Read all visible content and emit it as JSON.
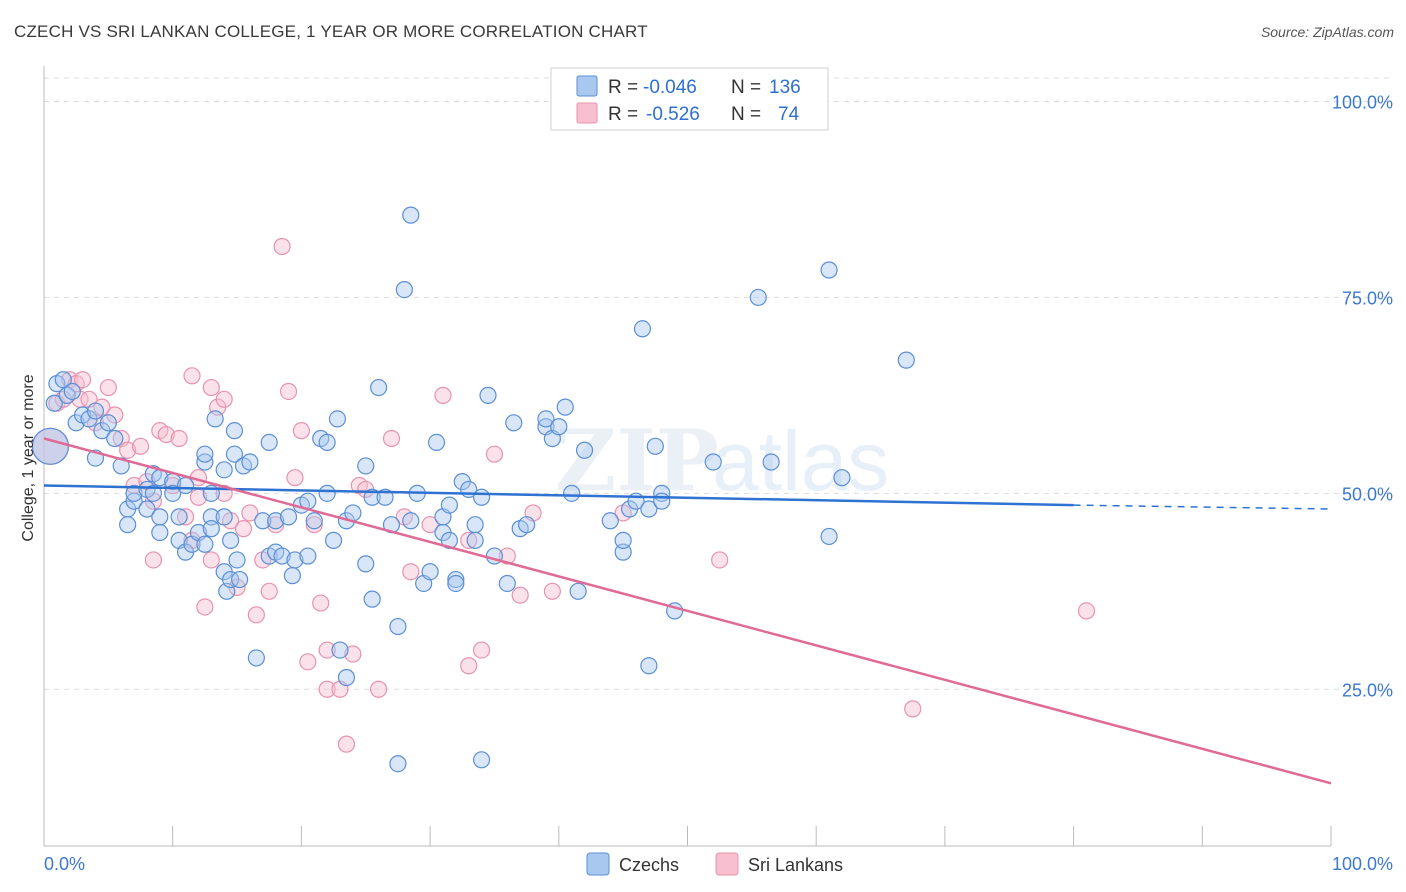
{
  "header": {
    "title": "CZECH VS SRI LANKAN COLLEGE, 1 YEAR OR MORE CORRELATION CHART",
    "source": "Source: ZipAtlas.com"
  },
  "legend": {
    "rows": [
      {
        "r_label": "R =",
        "r_value": "-0.046",
        "n_label": "N =",
        "n_value": "136"
      },
      {
        "r_label": "R =",
        "r_value": "-0.526",
        "n_label": "N =",
        "n_value": "74"
      }
    ]
  },
  "watermark": {
    "zip": "ZIP",
    "atlas": "atlas"
  },
  "colors": {
    "czech_fill": "#a9c8ef",
    "czech_stroke": "#5b8fd6",
    "czech_line": "#2e72d2",
    "srilanka_fill": "#f7bfd0",
    "srilanka_stroke": "#e893ae",
    "srilanka_line": "#e06a96",
    "tick_label": "#3b78cf",
    "grid": "#dddddd"
  },
  "chart_data": {
    "type": "scatter",
    "title": "CZECH VS SRI LANKAN COLLEGE, 1 YEAR OR MORE CORRELATION CHART",
    "xlabel": "",
    "ylabel": "College, 1 year or more",
    "xlim": [
      0,
      100
    ],
    "ylim": [
      5,
      103
    ],
    "x_tick_labels": [
      "0.0%",
      "100.0%"
    ],
    "y_tick_labels": [
      {
        "value": 25,
        "label": "25.0%"
      },
      {
        "value": 50,
        "label": "50.0%"
      },
      {
        "value": 75,
        "label": "75.0%"
      },
      {
        "value": 100,
        "label": "100.0%"
      }
    ],
    "grid": true,
    "legend_position": "top-center",
    "series": [
      {
        "name": "Czechs",
        "color": "#a9c8ef",
        "trend": {
          "x0": 0,
          "y0": 51.0,
          "x1": 80,
          "y1": 48.5,
          "dashed_to": 100,
          "dashed_y": 48.0
        },
        "points": [
          [
            0.5,
            56,
            1
          ],
          [
            0.8,
            61.5,
            0
          ],
          [
            1,
            64,
            0
          ],
          [
            1.5,
            64.5,
            0
          ],
          [
            1.8,
            62.5,
            0
          ],
          [
            2.2,
            63,
            0
          ],
          [
            2.5,
            59,
            0
          ],
          [
            3,
            60,
            0
          ],
          [
            3.5,
            59.5,
            0
          ],
          [
            4,
            60.5,
            0
          ],
          [
            4.5,
            58,
            0
          ],
          [
            5,
            59,
            0
          ],
          [
            5.5,
            57,
            0
          ],
          [
            4,
            54.5,
            0
          ],
          [
            6,
            53.5,
            0
          ],
          [
            6.5,
            48,
            0
          ],
          [
            6.5,
            46,
            0
          ],
          [
            7,
            49,
            0
          ],
          [
            7,
            50,
            0
          ],
          [
            8,
            48,
            0
          ],
          [
            8,
            50.5,
            0
          ],
          [
            8.5,
            52.5,
            0
          ],
          [
            9,
            52,
            0
          ],
          [
            8.5,
            50,
            0
          ],
          [
            9,
            47,
            0
          ],
          [
            9,
            45,
            0
          ],
          [
            10,
            51.5,
            0
          ],
          [
            10,
            50,
            0
          ],
          [
            10.5,
            47,
            0
          ],
          [
            10.5,
            44,
            0
          ],
          [
            11,
            51,
            0
          ],
          [
            11,
            42.5,
            0
          ],
          [
            11.5,
            43.5,
            0
          ],
          [
            12,
            45,
            0
          ],
          [
            12.5,
            43.5,
            0
          ],
          [
            12.5,
            54,
            0
          ],
          [
            12.5,
            55,
            0
          ],
          [
            13,
            47,
            0
          ],
          [
            13,
            45.5,
            0
          ],
          [
            13,
            50,
            0
          ],
          [
            13.3,
            59.5,
            0
          ],
          [
            14,
            53,
            0
          ],
          [
            14,
            47,
            0
          ],
          [
            14,
            40,
            0
          ],
          [
            14.2,
            37.5,
            0
          ],
          [
            14.5,
            39,
            0
          ],
          [
            14.5,
            44,
            0
          ],
          [
            14.8,
            58,
            0
          ],
          [
            14.8,
            55,
            0
          ],
          [
            15,
            41.5,
            0
          ],
          [
            15.2,
            39,
            0
          ],
          [
            15.5,
            53.5,
            0
          ],
          [
            16,
            54,
            0
          ],
          [
            16.5,
            29,
            0
          ],
          [
            17,
            46.5,
            0
          ],
          [
            17.5,
            56.5,
            0
          ],
          [
            17.5,
            42,
            0
          ],
          [
            18,
            46.5,
            0
          ],
          [
            18,
            42.5,
            0
          ],
          [
            18.5,
            42,
            0
          ],
          [
            19,
            47,
            0
          ],
          [
            19.3,
            39.5,
            0
          ],
          [
            19.5,
            41.5,
            0
          ],
          [
            20,
            48.5,
            0
          ],
          [
            20.5,
            42,
            0
          ],
          [
            20.5,
            49,
            0
          ],
          [
            21,
            46.5,
            0
          ],
          [
            21.5,
            57,
            0
          ],
          [
            22,
            50,
            0
          ],
          [
            22,
            56.5,
            0
          ],
          [
            22.5,
            44,
            0
          ],
          [
            22.8,
            59.5,
            0
          ],
          [
            23,
            30,
            0
          ],
          [
            23.5,
            46.5,
            0
          ],
          [
            23.5,
            26.5,
            0
          ],
          [
            24,
            47.5,
            0
          ],
          [
            25,
            41,
            0
          ],
          [
            25,
            53.5,
            0
          ],
          [
            25.5,
            49.5,
            0
          ],
          [
            25.5,
            36.5,
            0
          ],
          [
            26,
            63.5,
            0
          ],
          [
            26.5,
            49.5,
            0
          ],
          [
            27,
            46,
            0
          ],
          [
            27.5,
            33,
            0
          ],
          [
            27.5,
            15.5,
            0
          ],
          [
            28,
            76,
            0
          ],
          [
            28.5,
            85.5,
            0
          ],
          [
            28.5,
            46.5,
            0
          ],
          [
            29,
            50,
            0
          ],
          [
            29.5,
            38.5,
            0
          ],
          [
            30,
            40,
            0
          ],
          [
            30.5,
            56.5,
            0
          ],
          [
            31,
            45,
            0
          ],
          [
            31,
            47,
            0
          ],
          [
            31.5,
            48.5,
            0
          ],
          [
            31.5,
            44,
            0
          ],
          [
            32,
            39,
            0
          ],
          [
            32,
            38.5,
            0
          ],
          [
            32.5,
            51.5,
            0
          ],
          [
            33,
            50.5,
            0
          ],
          [
            33.5,
            46,
            0
          ],
          [
            33.5,
            44,
            0
          ],
          [
            34,
            49.5,
            0
          ],
          [
            34,
            16,
            0
          ],
          [
            34.5,
            62.5,
            0
          ],
          [
            35,
            42,
            0
          ],
          [
            36,
            38.5,
            0
          ],
          [
            36.5,
            59,
            0
          ],
          [
            37,
            45.5,
            0
          ],
          [
            37.5,
            46,
            0
          ],
          [
            39,
            58.5,
            0
          ],
          [
            39,
            59.5,
            0
          ],
          [
            39.5,
            57,
            0
          ],
          [
            40,
            58.5,
            0
          ],
          [
            40.5,
            61,
            0
          ],
          [
            41,
            50,
            0
          ],
          [
            41.5,
            37.5,
            0
          ],
          [
            42,
            55.5,
            0
          ],
          [
            44,
            46.5,
            0
          ],
          [
            45,
            42.5,
            0
          ],
          [
            45,
            44,
            0
          ],
          [
            45.5,
            48,
            0
          ],
          [
            46,
            49,
            0
          ],
          [
            46.5,
            71,
            0
          ],
          [
            47,
            48,
            0
          ],
          [
            47,
            28,
            0
          ],
          [
            47.5,
            56,
            0
          ],
          [
            48,
            50,
            0
          ],
          [
            48,
            49,
            0
          ],
          [
            49,
            35,
            0
          ],
          [
            52,
            54,
            0
          ],
          [
            55.5,
            75,
            0
          ],
          [
            56.5,
            54,
            0
          ],
          [
            61,
            78.5,
            0
          ],
          [
            61,
            44.5,
            0
          ],
          [
            62,
            52,
            0
          ],
          [
            67,
            67,
            0
          ]
        ]
      },
      {
        "name": "Sri Lankans",
        "color": "#f7bfd0",
        "trend": {
          "x0": 0,
          "y0": 57.0,
          "x1": 100,
          "y1": 13.0
        },
        "points": [
          [
            0.5,
            56,
            1
          ],
          [
            1,
            61.5,
            0
          ],
          [
            1.5,
            62,
            0
          ],
          [
            2,
            64.5,
            0
          ],
          [
            2.5,
            64,
            0
          ],
          [
            2.8,
            62,
            0
          ],
          [
            3,
            64.5,
            0
          ],
          [
            3.5,
            62,
            0
          ],
          [
            4,
            59,
            0
          ],
          [
            4.5,
            61,
            0
          ],
          [
            5,
            63.5,
            0
          ],
          [
            5.5,
            60,
            0
          ],
          [
            6,
            57,
            0
          ],
          [
            6.5,
            55.5,
            0
          ],
          [
            7,
            51,
            0
          ],
          [
            7.5,
            56,
            0
          ],
          [
            8,
            51.5,
            0
          ],
          [
            8.5,
            49,
            0
          ],
          [
            8.5,
            41.5,
            0
          ],
          [
            9,
            58,
            0
          ],
          [
            9.5,
            57.5,
            0
          ],
          [
            10,
            51,
            0
          ],
          [
            10.5,
            57,
            0
          ],
          [
            11,
            47,
            0
          ],
          [
            11.5,
            65,
            0
          ],
          [
            11.5,
            44,
            0
          ],
          [
            12,
            49.5,
            0
          ],
          [
            12,
            52,
            0
          ],
          [
            12.5,
            35.5,
            0
          ],
          [
            13,
            63.5,
            0
          ],
          [
            13,
            41.5,
            0
          ],
          [
            13.5,
            61,
            0
          ],
          [
            14,
            62,
            0
          ],
          [
            14,
            50,
            0
          ],
          [
            14.5,
            46.5,
            0
          ],
          [
            15,
            38,
            0
          ],
          [
            15.5,
            45.5,
            0
          ],
          [
            16,
            47.5,
            0
          ],
          [
            16.5,
            34.5,
            0
          ],
          [
            17,
            41.5,
            0
          ],
          [
            17.5,
            37.5,
            0
          ],
          [
            18,
            46,
            0
          ],
          [
            18.5,
            81.5,
            0
          ],
          [
            19,
            63,
            0
          ],
          [
            19.5,
            52,
            0
          ],
          [
            20,
            58,
            0
          ],
          [
            20.5,
            28.5,
            0
          ],
          [
            21,
            46,
            0
          ],
          [
            21.5,
            36,
            0
          ],
          [
            22,
            30,
            0
          ],
          [
            22,
            25,
            0
          ],
          [
            23,
            25,
            0
          ],
          [
            23.5,
            18,
            0
          ],
          [
            24,
            29.5,
            0
          ],
          [
            24.5,
            51,
            0
          ],
          [
            25,
            50.5,
            0
          ],
          [
            26,
            25,
            0
          ],
          [
            27,
            57,
            0
          ],
          [
            28,
            47,
            0
          ],
          [
            28.5,
            40,
            0
          ],
          [
            30,
            46,
            0
          ],
          [
            31,
            62.5,
            0
          ],
          [
            33,
            44,
            0
          ],
          [
            33,
            28,
            0
          ],
          [
            34,
            30,
            0
          ],
          [
            35,
            55,
            0
          ],
          [
            36,
            42,
            0
          ],
          [
            37,
            37,
            0
          ],
          [
            38,
            47.5,
            0
          ],
          [
            39.5,
            37.5,
            0
          ],
          [
            45,
            47.5,
            0
          ],
          [
            52.5,
            41.5,
            0
          ],
          [
            81,
            35,
            0
          ],
          [
            67.5,
            22.5,
            0
          ]
        ]
      }
    ]
  },
  "bottom_legend": {
    "items": [
      "Czechs",
      "Sri Lankans"
    ]
  }
}
